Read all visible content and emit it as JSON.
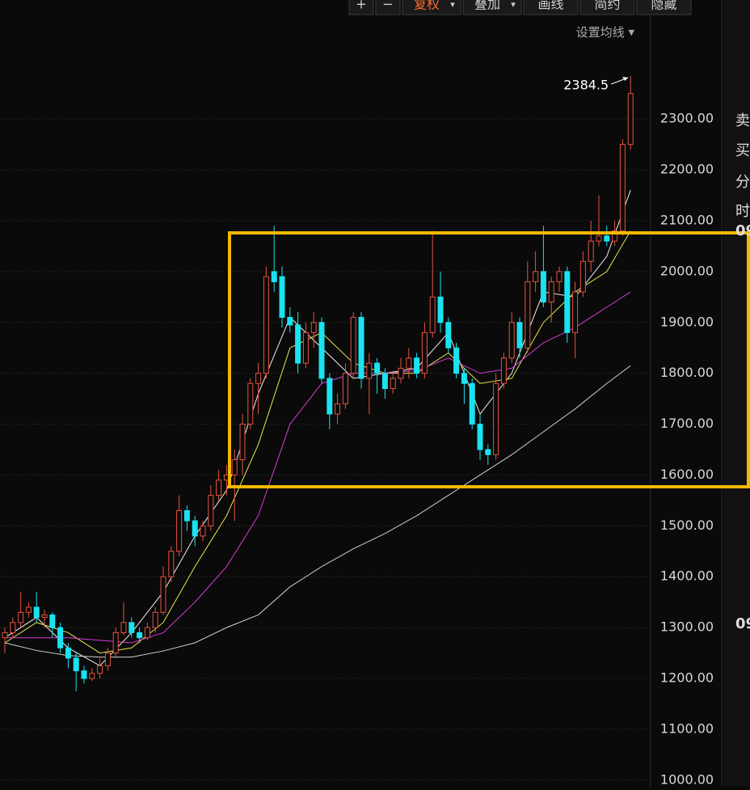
{
  "toolbar": {
    "buttons": [
      "+",
      "−",
      "复权",
      "叠加",
      "画线",
      "简约",
      "隐藏"
    ],
    "ma_setting": "设置均线"
  },
  "side_panel": {
    "labels": [
      "卖",
      "买",
      "分",
      "时",
      "09",
      "09"
    ]
  },
  "chart_data": {
    "type": "candlestick",
    "ylim": [
      987,
      2534
    ],
    "yticks": [
      {
        "value": 1000,
        "label": "1000.00"
      },
      {
        "value": 1100,
        "label": "1100.00"
      },
      {
        "value": 1200,
        "label": "1200.00"
      },
      {
        "value": 1300,
        "label": "1300.00"
      },
      {
        "value": 1400,
        "label": "1400.00"
      },
      {
        "value": 1500,
        "label": "1500.00"
      },
      {
        "value": 1600,
        "label": "1600.00"
      },
      {
        "value": 1700,
        "label": "1700.00"
      },
      {
        "value": 1800,
        "label": "1800.00"
      },
      {
        "value": 1900,
        "label": "1900.00"
      },
      {
        "value": 2000,
        "label": "2000.00"
      },
      {
        "value": 2100,
        "label": "2100.00"
      },
      {
        "value": 2200,
        "label": "2200.00"
      },
      {
        "value": 2300,
        "label": "2300.00"
      }
    ],
    "grid": true,
    "up_color": "#e5533f",
    "down_color": "#19e3f0",
    "values": [
      [
        1280,
        1300,
        1250,
        1290
      ],
      [
        1290,
        1320,
        1280,
        1310
      ],
      [
        1310,
        1370,
        1300,
        1330
      ],
      [
        1330,
        1350,
        1320,
        1340
      ],
      [
        1340,
        1370,
        1310,
        1320
      ],
      [
        1320,
        1335,
        1300,
        1325
      ],
      [
        1325,
        1330,
        1280,
        1300
      ],
      [
        1300,
        1310,
        1250,
        1260
      ],
      [
        1260,
        1270,
        1220,
        1240
      ],
      [
        1240,
        1250,
        1175,
        1215
      ],
      [
        1215,
        1225,
        1190,
        1200
      ],
      [
        1200,
        1220,
        1195,
        1210
      ],
      [
        1210,
        1240,
        1200,
        1225
      ],
      [
        1225,
        1260,
        1215,
        1250
      ],
      [
        1250,
        1300,
        1240,
        1290
      ],
      [
        1290,
        1350,
        1285,
        1310
      ],
      [
        1310,
        1320,
        1280,
        1290
      ],
      [
        1290,
        1300,
        1270,
        1280
      ],
      [
        1280,
        1310,
        1275,
        1300
      ],
      [
        1300,
        1340,
        1290,
        1330
      ],
      [
        1330,
        1420,
        1325,
        1400
      ],
      [
        1400,
        1460,
        1390,
        1450
      ],
      [
        1450,
        1560,
        1440,
        1530
      ],
      [
        1530,
        1540,
        1490,
        1510
      ],
      [
        1510,
        1520,
        1460,
        1480
      ],
      [
        1480,
        1510,
        1470,
        1500
      ],
      [
        1500,
        1580,
        1490,
        1560
      ],
      [
        1560,
        1610,
        1550,
        1590
      ],
      [
        1590,
        1620,
        1560,
        1600
      ],
      [
        1600,
        1650,
        1510,
        1630
      ],
      [
        1630,
        1720,
        1600,
        1700
      ],
      [
        1700,
        1790,
        1690,
        1780
      ],
      [
        1780,
        1820,
        1720,
        1800
      ],
      [
        1800,
        2010,
        1790,
        1990
      ],
      [
        2000,
        2090,
        1960,
        1980
      ],
      [
        1990,
        2010,
        1890,
        1910
      ],
      [
        1910,
        1930,
        1880,
        1895
      ],
      [
        1895,
        1920,
        1800,
        1820
      ],
      [
        1820,
        1900,
        1810,
        1880
      ],
      [
        1880,
        1920,
        1850,
        1900
      ],
      [
        1900,
        1910,
        1780,
        1790
      ],
      [
        1790,
        1800,
        1690,
        1720
      ],
      [
        1720,
        1760,
        1700,
        1740
      ],
      [
        1740,
        1820,
        1730,
        1800
      ],
      [
        1800,
        1920,
        1790,
        1910
      ],
      [
        1910,
        1920,
        1770,
        1790
      ],
      [
        1790,
        1840,
        1720,
        1820
      ],
      [
        1820,
        1830,
        1760,
        1800
      ],
      [
        1800,
        1810,
        1750,
        1770
      ],
      [
        1770,
        1800,
        1760,
        1790
      ],
      [
        1790,
        1830,
        1780,
        1810
      ],
      [
        1810,
        1850,
        1790,
        1830
      ],
      [
        1830,
        1840,
        1790,
        1800
      ],
      [
        1800,
        1900,
        1790,
        1880
      ],
      [
        1880,
        2080,
        1870,
        1950
      ],
      [
        1950,
        2000,
        1880,
        1900
      ],
      [
        1900,
        1910,
        1840,
        1850
      ],
      [
        1850,
        1860,
        1790,
        1800
      ],
      [
        1800,
        1810,
        1740,
        1780
      ],
      [
        1780,
        1790,
        1690,
        1700
      ],
      [
        1700,
        1720,
        1630,
        1650
      ],
      [
        1650,
        1660,
        1620,
        1640
      ],
      [
        1640,
        1800,
        1630,
        1780
      ],
      [
        1780,
        1840,
        1770,
        1830
      ],
      [
        1830,
        1920,
        1820,
        1900
      ],
      [
        1900,
        1910,
        1830,
        1850
      ],
      [
        1850,
        2020,
        1840,
        1980
      ],
      [
        1980,
        2040,
        1960,
        2000
      ],
      [
        2000,
        2090,
        1930,
        1940
      ],
      [
        1940,
        1990,
        1900,
        1980
      ],
      [
        1980,
        2010,
        1960,
        2000
      ],
      [
        2000,
        2010,
        1860,
        1880
      ],
      [
        1880,
        1980,
        1830,
        1960
      ],
      [
        1960,
        2040,
        1950,
        2020
      ],
      [
        2020,
        2100,
        2000,
        2060
      ],
      [
        2060,
        2150,
        2050,
        2070
      ],
      [
        2070,
        2090,
        2050,
        2060
      ],
      [
        2060,
        2100,
        2050,
        2080
      ],
      [
        2080,
        2260,
        2070,
        2250
      ],
      [
        2250,
        2384.5,
        2240,
        2350
      ]
    ],
    "ma_series": [
      {
        "color": "#f0f0f0",
        "x": [
          0,
          4,
          8,
          12,
          16,
          20,
          24,
          28,
          32,
          36,
          40,
          44,
          48,
          52,
          56,
          60,
          64,
          68,
          72,
          76,
          79
        ],
        "values": [
          1280,
          1320,
          1260,
          1225,
          1290,
          1370,
          1480,
          1570,
          1760,
          1910,
          1850,
          1790,
          1800,
          1810,
          1880,
          1720,
          1800,
          1960,
          1950,
          2030,
          2160
        ]
      },
      {
        "color": "#e8e84a",
        "x": [
          0,
          4,
          8,
          12,
          16,
          20,
          24,
          28,
          32,
          36,
          40,
          44,
          48,
          52,
          56,
          60,
          64,
          68,
          72,
          76,
          79
        ],
        "values": [
          1270,
          1310,
          1290,
          1250,
          1260,
          1310,
          1420,
          1520,
          1660,
          1850,
          1880,
          1820,
          1800,
          1800,
          1840,
          1780,
          1790,
          1900,
          1960,
          2000,
          2080
        ]
      },
      {
        "color": "#d63ad6",
        "x": [
          0,
          4,
          8,
          12,
          16,
          20,
          24,
          28,
          32,
          36,
          40,
          44,
          48,
          52,
          56,
          60,
          64,
          68,
          72,
          76,
          79
        ],
        "values": [
          1280,
          1280,
          1280,
          1275,
          1270,
          1290,
          1350,
          1420,
          1520,
          1700,
          1780,
          1800,
          1800,
          1805,
          1830,
          1800,
          1810,
          1860,
          1890,
          1930,
          1960
        ]
      },
      {
        "color": "#cfcfcf",
        "x": [
          0,
          4,
          8,
          12,
          16,
          20,
          24,
          28,
          32,
          36,
          40,
          44,
          48,
          52,
          56,
          60,
          64,
          68,
          72,
          76,
          79
        ],
        "values": [
          1270,
          1255,
          1245,
          1242,
          1242,
          1254,
          1270,
          1300,
          1325,
          1380,
          1420,
          1455,
          1485,
          1520,
          1560,
          1600,
          1640,
          1685,
          1730,
          1780,
          1815
        ]
      }
    ],
    "annotation": "2384.5"
  }
}
